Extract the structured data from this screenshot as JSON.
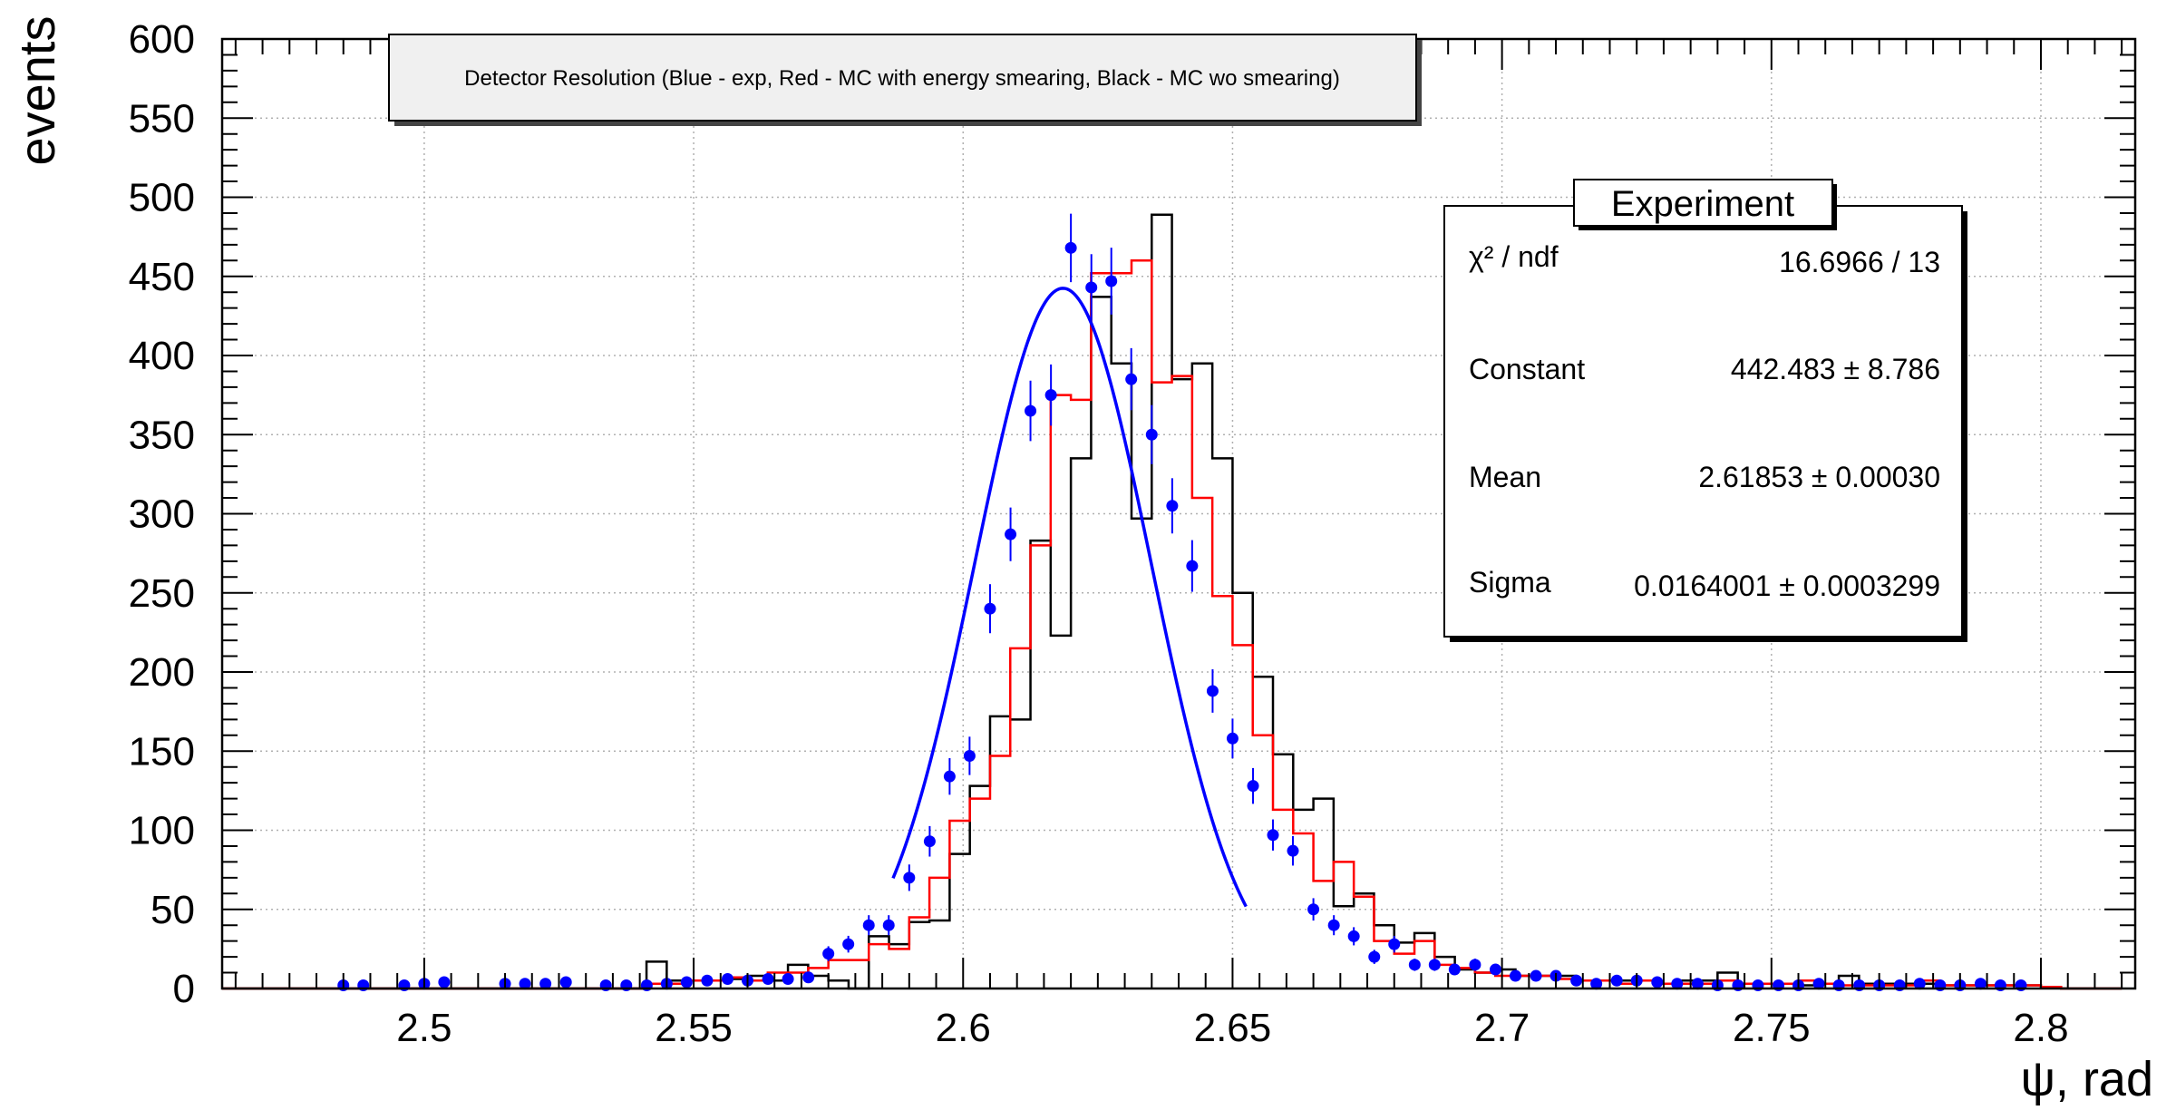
{
  "chart_data": {
    "type": "histogram",
    "title": "Detector Resolution (Blue - exp, Red - MC with energy smearing, Black - MC wo smearing)",
    "xlabel": "ψ, rad",
    "ylabel": "events",
    "xlim": [
      2.4625,
      2.8175
    ],
    "ylim": [
      0,
      600
    ],
    "grid": true,
    "x_ticks": [
      2.5,
      2.55,
      2.6,
      2.65,
      2.7,
      2.75,
      2.8
    ],
    "x_tick_labels": [
      "2.5",
      "2.55",
      "2.6",
      "2.65",
      "2.7",
      "2.75",
      "2.8"
    ],
    "y_ticks": [
      0,
      50,
      100,
      150,
      200,
      250,
      300,
      350,
      400,
      450,
      500,
      550,
      600
    ],
    "y_tick_labels": [
      "0",
      "50",
      "100",
      "150",
      "200",
      "250",
      "300",
      "350",
      "400",
      "450",
      "500",
      "550",
      "600"
    ],
    "bin_edges_start": 2.4625,
    "bin_width": 0.00375,
    "mc_no_smearing": {
      "color": "#000000",
      "values": [
        0,
        0,
        0,
        0,
        0,
        0,
        0,
        0,
        0,
        0,
        0,
        0,
        0,
        0,
        0,
        0,
        0,
        0,
        0,
        0,
        0,
        17,
        5,
        5,
        5,
        6,
        8,
        5,
        15,
        8,
        5,
        0,
        33,
        28,
        42,
        43,
        85,
        128,
        172,
        170,
        283,
        223,
        335,
        437,
        395,
        297,
        489,
        385,
        395,
        335,
        250,
        197,
        148,
        113,
        120,
        52,
        60,
        40,
        29,
        35,
        20,
        12,
        10,
        12,
        8,
        8,
        8,
        5,
        5,
        5,
        5,
        3,
        5,
        5,
        10,
        3,
        3,
        3,
        2,
        3,
        8,
        3,
        3,
        3,
        3,
        2,
        2,
        2,
        2,
        2,
        1,
        0,
        0,
        0
      ]
    },
    "mc_with_smearing": {
      "color": "#ff0000",
      "values": [
        0,
        0,
        0,
        0,
        0,
        0,
        0,
        0,
        0,
        0,
        0,
        0,
        0,
        0,
        0,
        0,
        0,
        0,
        0,
        0,
        0,
        3,
        3,
        5,
        5,
        7,
        5,
        10,
        10,
        13,
        18,
        18,
        28,
        25,
        45,
        70,
        106,
        120,
        147,
        215,
        280,
        375,
        372,
        452,
        452,
        460,
        383,
        387,
        310,
        248,
        217,
        160,
        113,
        98,
        68,
        80,
        58,
        30,
        22,
        30,
        15,
        13,
        10,
        8,
        8,
        8,
        6,
        5,
        5,
        3,
        5,
        3,
        3,
        3,
        5,
        3,
        3,
        3,
        5,
        3,
        2,
        2,
        2,
        2,
        5,
        2,
        2,
        2,
        2,
        2,
        1,
        0,
        0,
        0
      ]
    },
    "experiment": {
      "color": "#0000ff",
      "points": [
        {
          "x": 2.485,
          "y": 2
        },
        {
          "x": 2.4887,
          "y": 2
        },
        {
          "x": 2.4963,
          "y": 2
        },
        {
          "x": 2.5,
          "y": 3
        },
        {
          "x": 2.5037,
          "y": 4
        },
        {
          "x": 2.515,
          "y": 3
        },
        {
          "x": 2.5187,
          "y": 3
        },
        {
          "x": 2.5225,
          "y": 3
        },
        {
          "x": 2.5263,
          "y": 4
        },
        {
          "x": 2.5337,
          "y": 2
        },
        {
          "x": 2.5375,
          "y": 2
        },
        {
          "x": 2.5413,
          "y": 2
        },
        {
          "x": 2.545,
          "y": 3
        },
        {
          "x": 2.5487,
          "y": 4
        },
        {
          "x": 2.5525,
          "y": 5
        },
        {
          "x": 2.5563,
          "y": 6
        },
        {
          "x": 2.56,
          "y": 5
        },
        {
          "x": 2.5638,
          "y": 6
        },
        {
          "x": 2.5675,
          "y": 6
        },
        {
          "x": 2.5713,
          "y": 7
        },
        {
          "x": 2.575,
          "y": 22
        },
        {
          "x": 2.5787,
          "y": 28
        },
        {
          "x": 2.5825,
          "y": 40
        },
        {
          "x": 2.5862,
          "y": 40
        },
        {
          "x": 2.59,
          "y": 70
        },
        {
          "x": 2.5938,
          "y": 93
        },
        {
          "x": 2.5975,
          "y": 134
        },
        {
          "x": 2.6012,
          "y": 147
        },
        {
          "x": 2.605,
          "y": 240
        },
        {
          "x": 2.6088,
          "y": 287
        },
        {
          "x": 2.6125,
          "y": 365
        },
        {
          "x": 2.6163,
          "y": 375
        },
        {
          "x": 2.62,
          "y": 468
        },
        {
          "x": 2.6238,
          "y": 443
        },
        {
          "x": 2.6275,
          "y": 447
        },
        {
          "x": 2.6312,
          "y": 385
        },
        {
          "x": 2.635,
          "y": 350
        },
        {
          "x": 2.6388,
          "y": 305
        },
        {
          "x": 2.6425,
          "y": 267
        },
        {
          "x": 2.6463,
          "y": 188
        },
        {
          "x": 2.65,
          "y": 158
        },
        {
          "x": 2.6538,
          "y": 128
        },
        {
          "x": 2.6575,
          "y": 97
        },
        {
          "x": 2.6612,
          "y": 87
        },
        {
          "x": 2.665,
          "y": 50
        },
        {
          "x": 2.6688,
          "y": 40
        },
        {
          "x": 2.6725,
          "y": 33
        },
        {
          "x": 2.6763,
          "y": 20
        },
        {
          "x": 2.68,
          "y": 28
        },
        {
          "x": 2.6838,
          "y": 15
        },
        {
          "x": 2.6875,
          "y": 15
        },
        {
          "x": 2.6912,
          "y": 12
        },
        {
          "x": 2.695,
          "y": 15
        },
        {
          "x": 2.6988,
          "y": 12
        },
        {
          "x": 2.7025,
          "y": 8
        },
        {
          "x": 2.7063,
          "y": 8
        },
        {
          "x": 2.71,
          "y": 8
        },
        {
          "x": 2.7138,
          "y": 5
        },
        {
          "x": 2.7175,
          "y": 3
        },
        {
          "x": 2.7213,
          "y": 5
        },
        {
          "x": 2.725,
          "y": 5
        },
        {
          "x": 2.7288,
          "y": 4
        },
        {
          "x": 2.7325,
          "y": 3
        },
        {
          "x": 2.7363,
          "y": 3
        },
        {
          "x": 2.74,
          "y": 2
        },
        {
          "x": 2.7438,
          "y": 2
        },
        {
          "x": 2.7475,
          "y": 2
        },
        {
          "x": 2.7513,
          "y": 2
        },
        {
          "x": 2.755,
          "y": 2
        },
        {
          "x": 2.7588,
          "y": 3
        },
        {
          "x": 2.7625,
          "y": 2
        },
        {
          "x": 2.7663,
          "y": 2
        },
        {
          "x": 2.77,
          "y": 2
        },
        {
          "x": 2.7738,
          "y": 2
        },
        {
          "x": 2.7775,
          "y": 3
        },
        {
          "x": 2.7813,
          "y": 2
        },
        {
          "x": 2.785,
          "y": 2
        },
        {
          "x": 2.7888,
          "y": 3
        },
        {
          "x": 2.7925,
          "y": 2
        },
        {
          "x": 2.7963,
          "y": 2
        }
      ]
    },
    "fit": {
      "color": "#0000ff",
      "function": "gaus",
      "constant": 442.483,
      "mean": 2.61853,
      "sigma": 0.0164001,
      "range": [
        2.587,
        2.6525
      ]
    },
    "stats_box": {
      "title": "Experiment",
      "rows": [
        {
          "label": "χ² / ndf",
          "value": "16.6966 / 13"
        },
        {
          "label": "Constant",
          "value": "442.483 ± 8.786"
        },
        {
          "label": "Mean",
          "value": "2.61853 ± 0.00030"
        },
        {
          "label": "Sigma",
          "value": "0.0164001 ± 0.0003299"
        }
      ]
    }
  }
}
